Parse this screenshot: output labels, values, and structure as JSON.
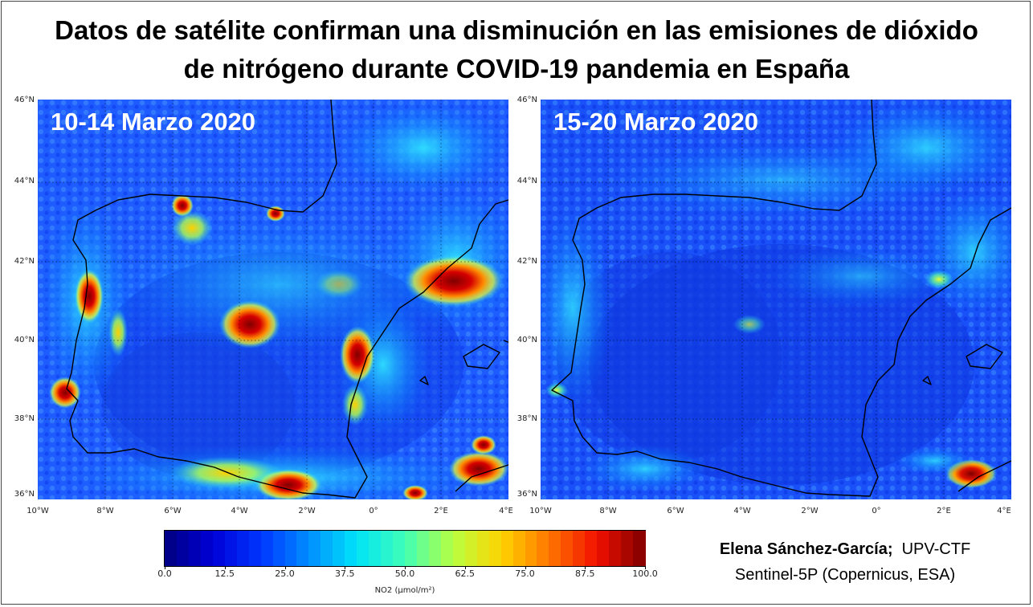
{
  "title": {
    "line1": "Datos de satélite confirman una disminución en las emisiones de dióxido",
    "line2": "de nitrógeno durante COVID-19 pandemia en España"
  },
  "maps": [
    {
      "label": "10-14 Marzo 2020"
    },
    {
      "label": "15-20 Marzo 2020"
    }
  ],
  "latitude_ticks": [
    "46°N",
    "44°N",
    "42°N",
    "40°N",
    "38°N",
    "36°N"
  ],
  "longitude_ticks": [
    "10°W",
    "8°W",
    "6°W",
    "4°W",
    "2°W",
    "0°",
    "2°E",
    "4°E"
  ],
  "colorbar": {
    "ticks": [
      "0.0",
      "12.5",
      "25.0",
      "37.5",
      "50.0",
      "62.5",
      "75.0",
      "87.5",
      "100.0"
    ],
    "label": "NO2 (μmol/m²)",
    "range": [
      0,
      100
    ],
    "colors": [
      "#00007f",
      "#0000d8",
      "#0036ff",
      "#008dff",
      "#00e4f8",
      "#40ffb7",
      "#b7ff40",
      "#ffd300",
      "#ff7700",
      "#f21000",
      "#7f0000"
    ]
  },
  "credit": {
    "author": "Elena Sánchez-García;",
    "affiliation": "UPV-CTF",
    "source": "Sentinel-5P (Copernicus, ESA)"
  }
}
